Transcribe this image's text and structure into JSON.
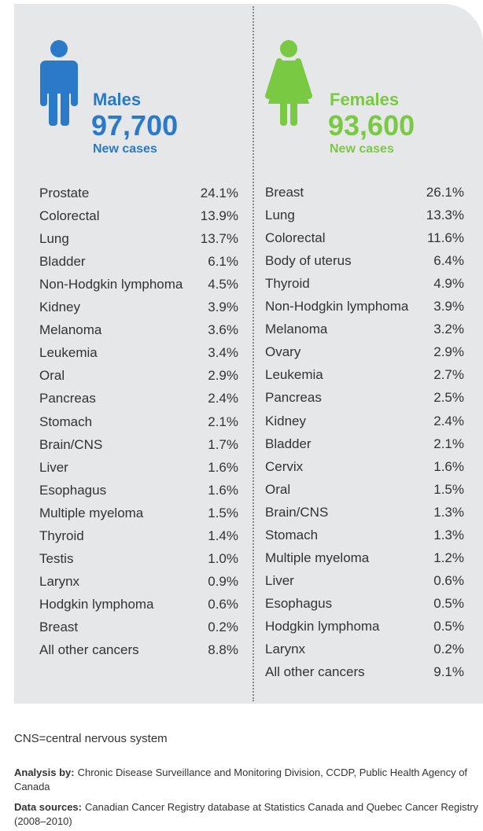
{
  "males": {
    "label": "Males",
    "count": "97,700",
    "sublabel": "New cases",
    "rows": [
      [
        "Prostate",
        "24.1%"
      ],
      [
        "Colorectal",
        "13.9%"
      ],
      [
        "Lung",
        "13.7%"
      ],
      [
        "Bladder",
        "6.1%"
      ],
      [
        "Non-Hodgkin lymphoma",
        "4.5%"
      ],
      [
        "Kidney",
        "3.9%"
      ],
      [
        "Melanoma",
        "3.6%"
      ],
      [
        "Leukemia",
        "3.4%"
      ],
      [
        "Oral",
        "2.9%"
      ],
      [
        "Pancreas",
        "2.4%"
      ],
      [
        "Stomach",
        "2.1%"
      ],
      [
        "Brain/CNS",
        "1.7%"
      ],
      [
        "Liver",
        "1.6%"
      ],
      [
        "Esophagus",
        "1.6%"
      ],
      [
        "Multiple myeloma",
        "1.5%"
      ],
      [
        "Thyroid",
        "1.4%"
      ],
      [
        "Testis",
        "1.0%"
      ],
      [
        "Larynx",
        "0.9%"
      ],
      [
        "Hodgkin lymphoma",
        "0.6%"
      ],
      [
        "Breast",
        "0.2%"
      ],
      [
        "All other cancers",
        "8.8%"
      ]
    ]
  },
  "females": {
    "label": "Females",
    "count": "93,600",
    "sublabel": "New cases",
    "rows": [
      [
        "Breast",
        "26.1%"
      ],
      [
        "Lung",
        "13.3%"
      ],
      [
        "Colorectal",
        "11.6%"
      ],
      [
        "Body of uterus",
        "6.4%"
      ],
      [
        "Thyroid",
        "4.9%"
      ],
      [
        "Non-Hodgkin lymphoma",
        "3.9%"
      ],
      [
        "Melanoma",
        "3.2%"
      ],
      [
        "Ovary",
        "2.9%"
      ],
      [
        "Leukemia",
        "2.7%"
      ],
      [
        "Pancreas",
        "2.5%"
      ],
      [
        "Kidney",
        "2.4%"
      ],
      [
        "Bladder",
        "2.1%"
      ],
      [
        "Cervix",
        "1.6%"
      ],
      [
        "Oral",
        "1.5%"
      ],
      [
        "Brain/CNS",
        "1.3%"
      ],
      [
        "Stomach",
        "1.3%"
      ],
      [
        "Multiple myeloma",
        "1.2%"
      ],
      [
        "Liver",
        "0.6%"
      ],
      [
        "Esophagus",
        "0.5%"
      ],
      [
        "Hodgkin lymphoma",
        "0.5%"
      ],
      [
        "Larynx",
        "0.2%"
      ],
      [
        "All other cancers",
        "9.1%"
      ]
    ]
  },
  "footnote": "CNS=central nervous system",
  "analysis": {
    "label": "Analysis by:",
    "text": "Chronic Disease Surveillance and Monitoring Division, CCDP, Public Health Agency of Canada"
  },
  "sources": {
    "label": "Data sources:",
    "text": "Canadian Cancer Registry database at Statistics Canada and Quebec Cancer Registry (2008–2010)"
  }
}
